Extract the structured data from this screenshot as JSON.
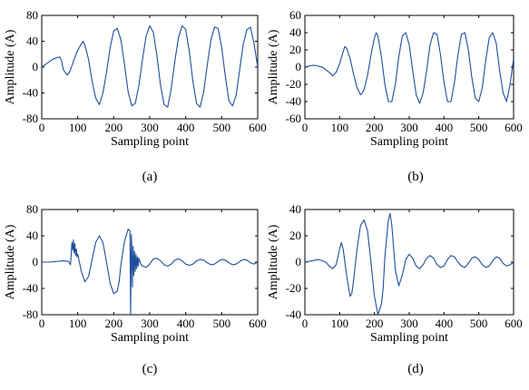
{
  "chart_data": [
    {
      "type": "line",
      "panel_label": "(a)",
      "xlabel": "Sampling point",
      "ylabel": "Amplitude (A)",
      "xlim": [
        0,
        600
      ],
      "ylim": [
        -80,
        80
      ],
      "x_ticks": [
        "0",
        "100",
        "200",
        "300",
        "400",
        "500",
        "600"
      ],
      "y_ticks": [
        "80",
        "40",
        "0",
        "-40",
        "-80"
      ],
      "x_tick_values": [
        0,
        100,
        200,
        300,
        400,
        500,
        600
      ],
      "y_tick_values": [
        80,
        40,
        0,
        -40,
        -80
      ],
      "grid": false,
      "series": [
        {
          "color": "#1f4e9c",
          "x": [
            0,
            10,
            20,
            30,
            40,
            50,
            55,
            60,
            70,
            75,
            80,
            90,
            100,
            110,
            115,
            120,
            130,
            140,
            150,
            160,
            170,
            180,
            190,
            200,
            210,
            220,
            230,
            240,
            250,
            260,
            270,
            280,
            290,
            300,
            310,
            320,
            330,
            340,
            350,
            360,
            370,
            380,
            390,
            400,
            410,
            420,
            430,
            440,
            450,
            460,
            470,
            480,
            490,
            500,
            510,
            520,
            530,
            540,
            550,
            560,
            570,
            580,
            590,
            600
          ],
          "y": [
            0,
            4,
            8,
            12,
            14,
            16,
            10,
            -4,
            -12,
            -10,
            -4,
            12,
            26,
            36,
            40,
            34,
            12,
            -22,
            -48,
            -58,
            -40,
            -8,
            30,
            56,
            60,
            42,
            4,
            -38,
            -60,
            -56,
            -28,
            12,
            48,
            64,
            54,
            18,
            -28,
            -58,
            -62,
            -32,
            10,
            46,
            64,
            58,
            24,
            -22,
            -56,
            -62,
            -38,
            4,
            42,
            62,
            60,
            30,
            -14,
            -52,
            -60,
            -44,
            -4,
            36,
            58,
            62,
            36,
            0
          ]
        }
      ]
    },
    {
      "type": "line",
      "panel_label": "(b)",
      "xlabel": "Sampling point",
      "ylabel": "Amplitude (A)",
      "xlim": [
        0,
        600
      ],
      "ylim": [
        -60,
        60
      ],
      "x_ticks": [
        "0",
        "100",
        "200",
        "300",
        "400",
        "500",
        "600"
      ],
      "y_ticks": [
        "60",
        "40",
        "20",
        "0",
        "-20",
        "-40",
        "-60"
      ],
      "x_tick_values": [
        0,
        100,
        200,
        300,
        400,
        500,
        600
      ],
      "y_tick_values": [
        60,
        40,
        20,
        0,
        -20,
        -40,
        -60
      ],
      "grid": false,
      "series": [
        {
          "color": "#1f4e9c",
          "x": [
            0,
            10,
            20,
            30,
            40,
            50,
            60,
            70,
            80,
            90,
            100,
            110,
            115,
            120,
            130,
            140,
            150,
            160,
            165,
            170,
            180,
            190,
            200,
            205,
            210,
            220,
            230,
            240,
            250,
            260,
            270,
            280,
            290,
            300,
            310,
            320,
            330,
            340,
            350,
            360,
            370,
            380,
            390,
            400,
            410,
            420,
            430,
            440,
            450,
            460,
            470,
            480,
            490,
            500,
            510,
            520,
            530,
            540,
            550,
            560,
            570,
            580,
            590,
            600
          ],
          "y": [
            0,
            1,
            2,
            2,
            1,
            0,
            -3,
            -6,
            -10,
            -6,
            4,
            18,
            24,
            22,
            10,
            -8,
            -24,
            -32,
            -30,
            -26,
            -10,
            14,
            34,
            40,
            36,
            12,
            -20,
            -40,
            -40,
            -20,
            12,
            36,
            40,
            26,
            -4,
            -32,
            -42,
            -30,
            -4,
            26,
            40,
            38,
            14,
            -18,
            -40,
            -40,
            -18,
            14,
            38,
            40,
            20,
            -12,
            -36,
            -40,
            -24,
            8,
            34,
            40,
            28,
            -4,
            -30,
            -40,
            -20,
            10
          ]
        }
      ]
    },
    {
      "type": "line",
      "panel_label": "(c)",
      "xlabel": "Sampling point",
      "ylabel": "Amplitude (A)",
      "xlim": [
        0,
        600
      ],
      "ylim": [
        -80,
        80
      ],
      "x_ticks": [
        "0",
        "100",
        "200",
        "300",
        "400",
        "500",
        "600"
      ],
      "y_ticks": [
        "80",
        "40",
        "0",
        "-40",
        "-80"
      ],
      "x_tick_values": [
        0,
        100,
        200,
        300,
        400,
        500,
        600
      ],
      "y_tick_values": [
        80,
        40,
        0,
        -40,
        -80
      ],
      "grid": false,
      "series": [
        {
          "color": "#1f4e9c",
          "x": [
            0,
            20,
            40,
            60,
            75,
            80,
            84,
            86,
            88,
            90,
            92,
            94,
            96,
            98,
            100,
            110,
            120,
            130,
            140,
            150,
            160,
            170,
            180,
            190,
            200,
            210,
            215,
            220,
            230,
            240,
            245,
            247,
            249,
            250,
            252,
            254,
            256,
            258,
            260,
            262,
            264,
            266,
            268,
            270,
            275,
            280,
            290,
            300,
            310,
            320,
            330,
            340,
            350,
            360,
            370,
            380,
            390,
            400,
            410,
            420,
            430,
            440,
            450,
            460,
            470,
            480,
            490,
            500,
            510,
            520,
            530,
            540,
            550,
            560,
            570,
            580,
            590,
            600
          ],
          "y": [
            0,
            0,
            1,
            2,
            1,
            -4,
            30,
            18,
            34,
            14,
            28,
            10,
            20,
            8,
            12,
            -14,
            -30,
            -22,
            4,
            30,
            40,
            30,
            0,
            -32,
            -48,
            -44,
            -30,
            -4,
            32,
            50,
            48,
            -80,
            42,
            30,
            -38,
            24,
            -20,
            16,
            -14,
            12,
            -10,
            8,
            -6,
            6,
            -3,
            -6,
            -8,
            -3,
            5,
            6,
            2,
            -4,
            -6,
            -3,
            3,
            5,
            2,
            -3,
            -5,
            -3,
            2,
            4,
            3,
            -1,
            -4,
            -3,
            1,
            4,
            3,
            -1,
            -4,
            -3,
            1,
            4,
            3,
            -1,
            -3,
            0
          ]
        }
      ]
    },
    {
      "type": "line",
      "panel_label": "(d)",
      "xlabel": "Sampling point",
      "ylabel": "Amplitude (A)",
      "xlim": [
        0,
        600
      ],
      "ylim": [
        -40,
        40
      ],
      "x_ticks": [
        "0",
        "100",
        "200",
        "300",
        "400",
        "500",
        "600"
      ],
      "y_ticks": [
        "40",
        "20",
        "0",
        "-20",
        "-40"
      ],
      "x_tick_values": [
        0,
        100,
        200,
        300,
        400,
        500,
        600
      ],
      "y_tick_values": [
        40,
        20,
        0,
        -20,
        -40
      ],
      "grid": false,
      "series": [
        {
          "color": "#1f4e9c",
          "x": [
            0,
            20,
            40,
            60,
            70,
            80,
            90,
            100,
            105,
            110,
            120,
            130,
            135,
            140,
            150,
            160,
            170,
            180,
            190,
            200,
            210,
            220,
            225,
            230,
            240,
            245,
            250,
            260,
            270,
            280,
            290,
            300,
            310,
            320,
            330,
            340,
            350,
            360,
            370,
            380,
            390,
            400,
            410,
            420,
            430,
            440,
            450,
            460,
            470,
            480,
            490,
            500,
            510,
            520,
            530,
            540,
            550,
            560,
            570,
            580,
            590,
            600
          ],
          "y": [
            0,
            1,
            2,
            0,
            -3,
            -5,
            -2,
            10,
            15,
            10,
            -10,
            -26,
            -24,
            -14,
            10,
            28,
            32,
            24,
            0,
            -26,
            -40,
            -32,
            -20,
            4,
            32,
            37,
            28,
            -6,
            -18,
            -10,
            2,
            6,
            3,
            -3,
            -5,
            -2,
            3,
            5,
            3,
            -2,
            -4,
            -3,
            2,
            5,
            4,
            0,
            -3,
            -4,
            -1,
            3,
            4,
            2,
            -2,
            -4,
            -3,
            1,
            4,
            3,
            -1,
            -3,
            -2,
            0
          ]
        }
      ]
    }
  ]
}
